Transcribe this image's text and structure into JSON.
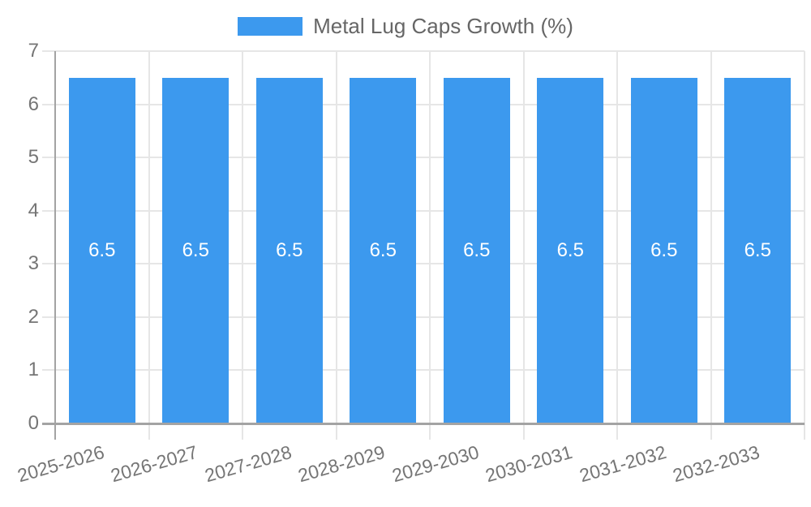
{
  "legend": {
    "label": "Metal Lug Caps Growth (%)"
  },
  "chart_data": {
    "type": "bar",
    "title": "Metal Lug Caps Growth (%)",
    "categories": [
      "2025-2026",
      "2026-2027",
      "2027-2028",
      "2028-2029",
      "2029-2030",
      "2030-2031",
      "2031-2032",
      "2032-2033"
    ],
    "series": [
      {
        "name": "Metal Lug Caps Growth (%)",
        "values": [
          6.5,
          6.5,
          6.5,
          6.5,
          6.5,
          6.5,
          6.5,
          6.5
        ]
      }
    ],
    "bar_value_labels": [
      "6.5",
      "6.5",
      "6.5",
      "6.5",
      "6.5",
      "6.5",
      "6.5",
      "6.5"
    ],
    "xlabel": "",
    "ylabel": "",
    "ylim": [
      0,
      7
    ],
    "yticks": [
      0,
      1,
      2,
      3,
      4,
      5,
      6,
      7
    ],
    "grid": true,
    "legend_position": "top",
    "x_tick_rotation_deg": -16,
    "colors": {
      "bar": "#3C99EE",
      "axis": "#A3A3A3",
      "grid": "#E6E6E6",
      "tick_text": "#757575",
      "legend_text": "#666666",
      "bar_label_text": "#FFFFFF",
      "background": "#FFFFFF"
    }
  }
}
